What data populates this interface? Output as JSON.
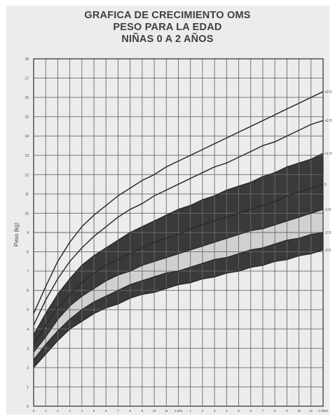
{
  "title": {
    "line1": "GRAFICA DE CRECIMIENTO OMS",
    "line2": "PESO PARA LA EDAD",
    "line3": "NIÑAS 0 A 2 AÑOS"
  },
  "colors": {
    "grid": "#6a6a6a",
    "curve": "#2b2b2b",
    "band_dark": "#3a3a3a",
    "band_light": "#d0d0d0",
    "text": "#3f3f3f",
    "background": "#ececec"
  },
  "chart_data": {
    "type": "line",
    "title": "GRAFICA DE CRECIMIENTO OMS — PESO PARA LA EDAD — NIÑAS 0 A 2 AÑOS",
    "xlabel": "",
    "ylabel": "Peso (kg)",
    "xlim": [
      0,
      24
    ],
    "ylim": [
      0,
      18
    ],
    "grid": true,
    "yticks": [
      "0",
      "1",
      "2",
      "3",
      "4",
      "5",
      "6",
      "7",
      "8",
      "9",
      "10",
      "11",
      "12",
      "13",
      "14",
      "15",
      "16",
      "17",
      "18"
    ],
    "xticks": [
      "0",
      "1",
      "2",
      "3",
      "4",
      "5",
      "6",
      "7",
      "8",
      "9",
      "10",
      "11",
      "1 año",
      "1",
      "2",
      "3",
      "4",
      "5",
      "6",
      "7",
      "8",
      "9",
      "10",
      "11",
      "2 años"
    ],
    "x": [
      0,
      1,
      2,
      3,
      4,
      5,
      6,
      7,
      8,
      9,
      10,
      11,
      12,
      13,
      14,
      15,
      16,
      17,
      18,
      19,
      20,
      21,
      22,
      23,
      24
    ],
    "series": [
      {
        "name": "+3 DE",
        "values": [
          4.8,
          6.2,
          7.5,
          8.5,
          9.3,
          9.9,
          10.4,
          10.9,
          11.3,
          11.7,
          12.0,
          12.4,
          12.7,
          13.0,
          13.3,
          13.6,
          13.9,
          14.2,
          14.5,
          14.8,
          15.1,
          15.4,
          15.7,
          16.0,
          16.3
        ]
      },
      {
        "name": "+2 DE",
        "values": [
          4.2,
          5.5,
          6.6,
          7.5,
          8.2,
          8.8,
          9.3,
          9.8,
          10.2,
          10.5,
          10.9,
          11.2,
          11.5,
          11.8,
          12.1,
          12.4,
          12.6,
          12.9,
          13.2,
          13.5,
          13.7,
          14.0,
          14.3,
          14.6,
          14.8
        ]
      },
      {
        "name": "+1 DE",
        "values": [
          3.7,
          4.8,
          5.8,
          6.6,
          7.3,
          7.8,
          8.2,
          8.6,
          9.0,
          9.3,
          9.6,
          9.9,
          10.2,
          10.4,
          10.7,
          10.9,
          11.2,
          11.4,
          11.6,
          11.9,
          12.1,
          12.4,
          12.6,
          12.8,
          13.1
        ]
      },
      {
        "name": "0",
        "values": [
          3.2,
          4.2,
          5.1,
          5.8,
          6.4,
          6.9,
          7.3,
          7.6,
          7.9,
          8.2,
          8.5,
          8.7,
          8.9,
          9.2,
          9.4,
          9.6,
          9.8,
          10.0,
          10.2,
          10.4,
          10.6,
          10.9,
          11.1,
          11.3,
          11.5
        ]
      },
      {
        "name": "-1 DE",
        "values": [
          2.8,
          3.6,
          4.5,
          5.2,
          5.7,
          6.1,
          6.5,
          6.8,
          7.0,
          7.3,
          7.5,
          7.7,
          7.9,
          8.1,
          8.3,
          8.5,
          8.7,
          8.9,
          9.1,
          9.2,
          9.4,
          9.6,
          9.8,
          10.0,
          10.2
        ]
      },
      {
        "name": "-2 DE",
        "values": [
          2.4,
          3.2,
          3.9,
          4.5,
          5.0,
          5.4,
          5.7,
          6.0,
          6.3,
          6.5,
          6.7,
          6.9,
          7.0,
          7.2,
          7.4,
          7.6,
          7.7,
          7.9,
          8.1,
          8.2,
          8.4,
          8.6,
          8.7,
          8.9,
          9.0
        ]
      },
      {
        "name": "-3 DE",
        "values": [
          2.0,
          2.7,
          3.4,
          4.0,
          4.4,
          4.8,
          5.1,
          5.3,
          5.6,
          5.8,
          5.9,
          6.1,
          6.3,
          6.4,
          6.6,
          6.7,
          6.9,
          7.0,
          7.2,
          7.3,
          7.5,
          7.6,
          7.8,
          7.9,
          8.1
        ]
      }
    ],
    "line_labels": [
      "+3 D",
      "+2 D",
      "+1 D",
      "0",
      "-1 D",
      "-2 D",
      "-3 D"
    ],
    "bands": [
      {
        "from": "+1 DE",
        "to": "0",
        "fill": "dark"
      },
      {
        "from": "0",
        "to": "-1 DE",
        "fill": "dark"
      },
      {
        "from": "-1 DE",
        "to": "-2 DE",
        "fill": "light"
      },
      {
        "from": "-2 DE",
        "to": "-3 DE",
        "fill": "dark"
      }
    ]
  }
}
